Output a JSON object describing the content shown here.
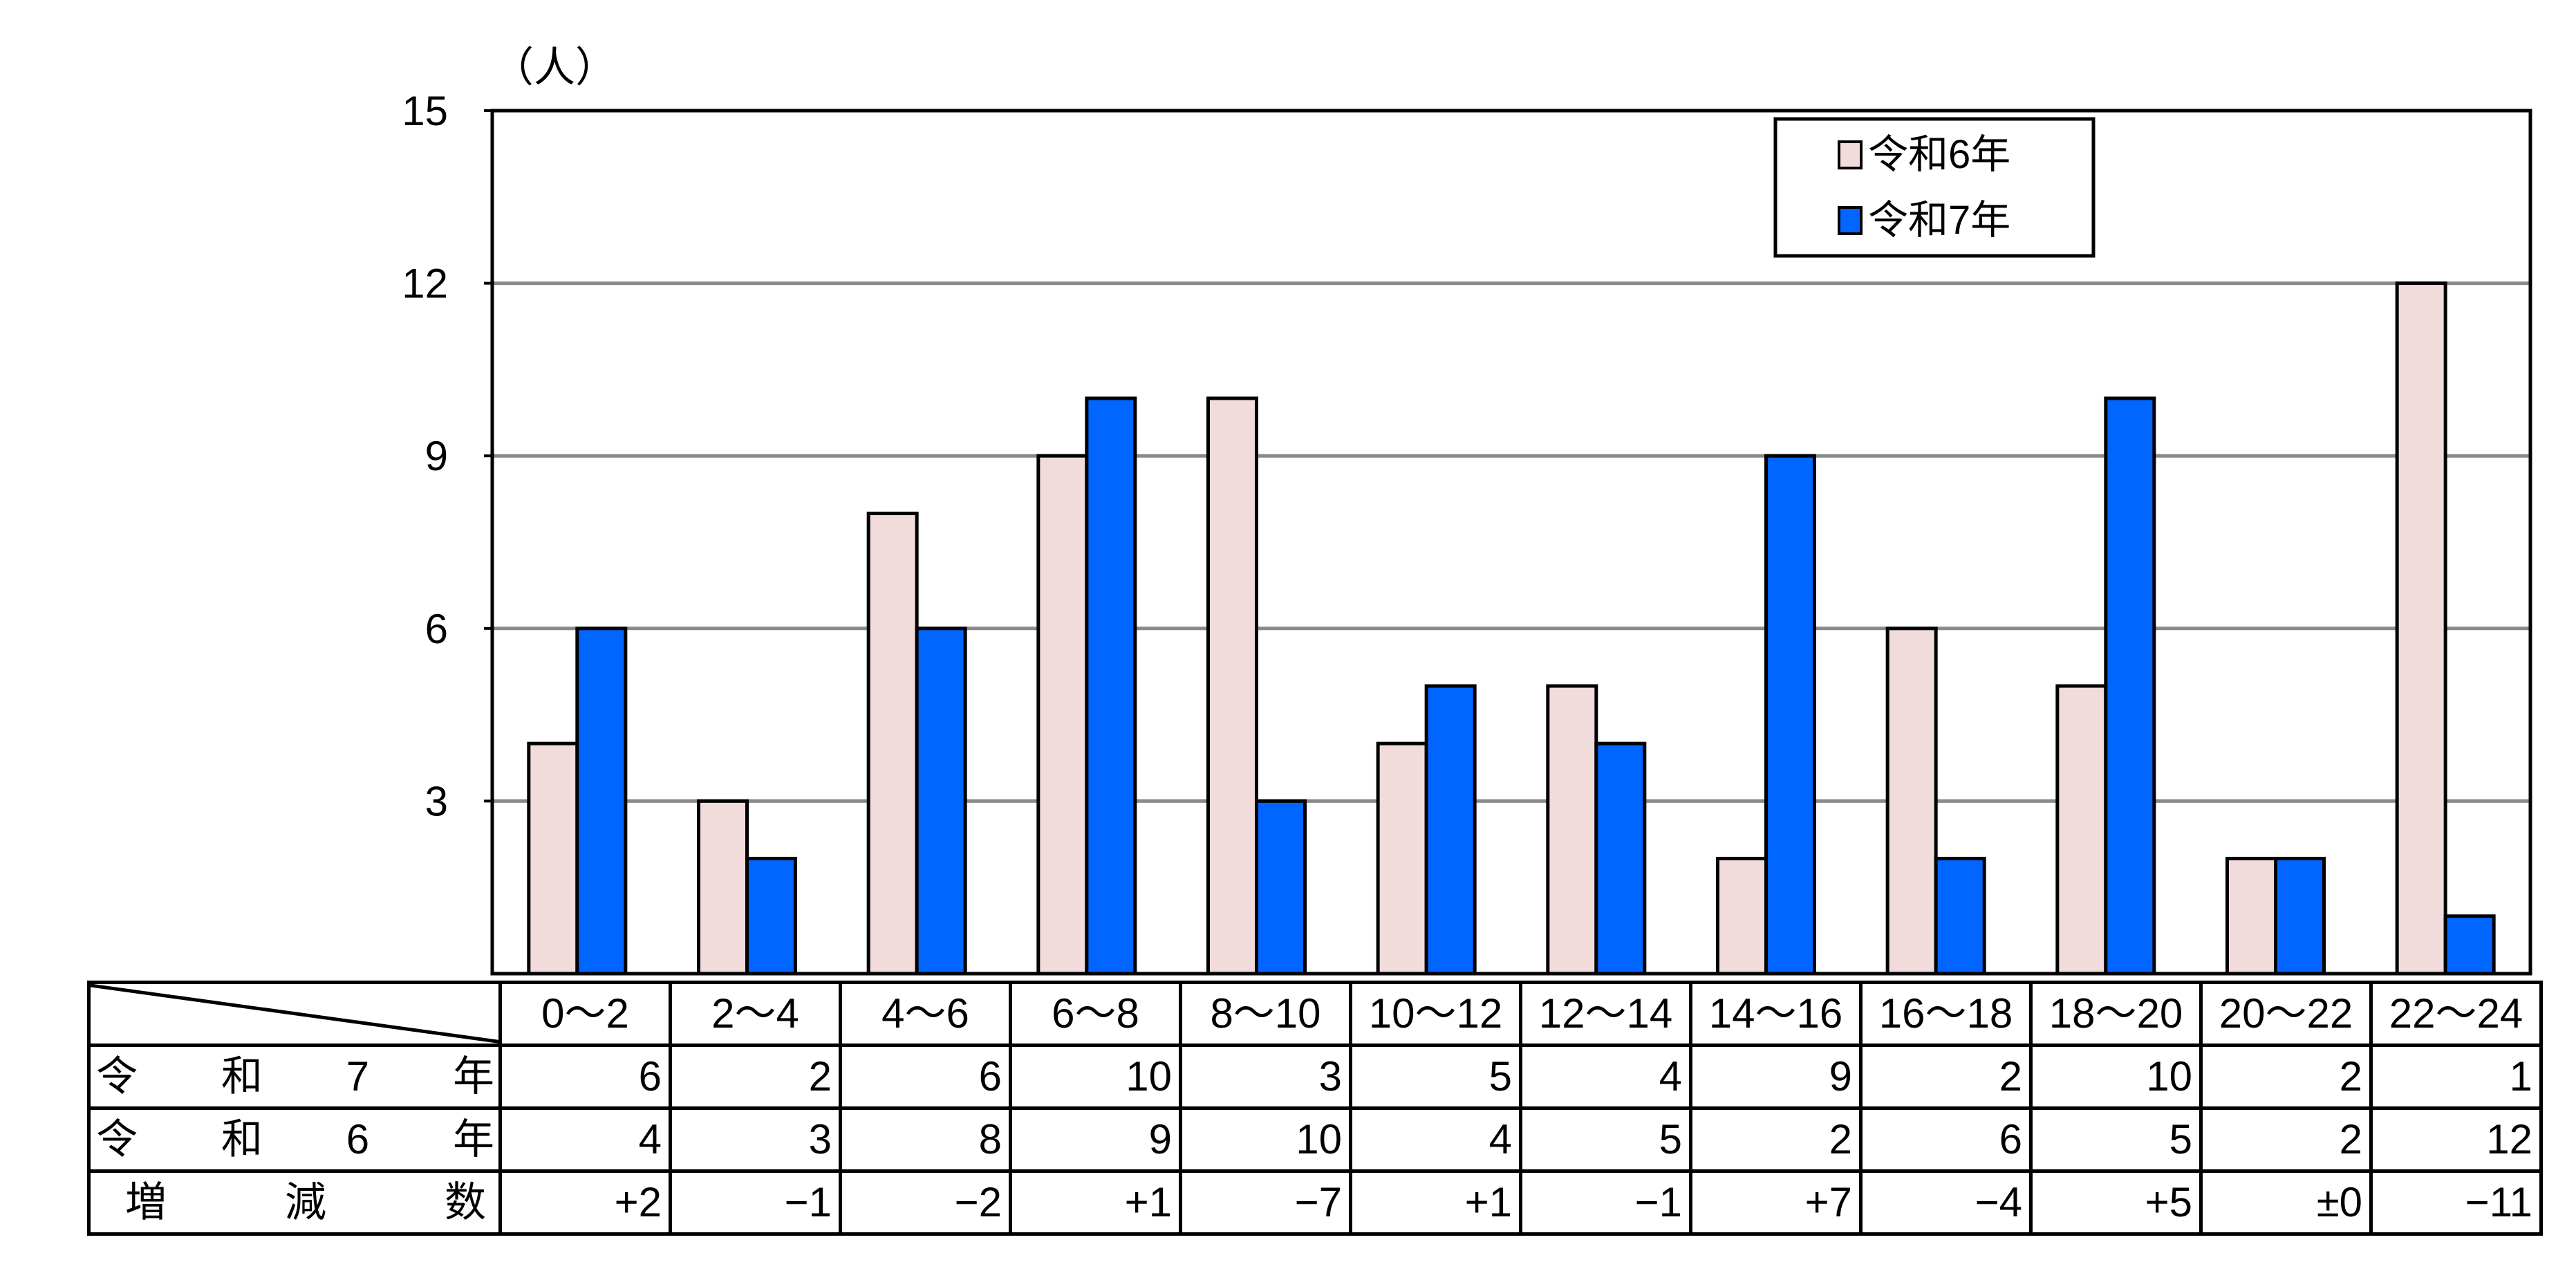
{
  "chart_data": {
    "type": "bar",
    "unit": "（人）",
    "categories": [
      "0～2",
      "2～4",
      "4～6",
      "6～8",
      "8～10",
      "10～12",
      "12～14",
      "14～16",
      "16～18",
      "18～20",
      "20～22",
      "22～24"
    ],
    "series": [
      {
        "name": "令和6年",
        "values": [
          4,
          3,
          8,
          9,
          10,
          4,
          5,
          2,
          6,
          5,
          2,
          12
        ],
        "color": "#f1dcdb"
      },
      {
        "name": "令和7年",
        "values": [
          6,
          2,
          6,
          10,
          3,
          5,
          4,
          9,
          2,
          10,
          2,
          1
        ],
        "color": "#0066ff"
      }
    ],
    "ylim": [
      0,
      15
    ],
    "yticks": [
      3,
      6,
      9,
      12,
      15
    ],
    "grid": true,
    "legend_position": "top-right"
  },
  "table": {
    "rows": [
      {
        "label_chars": [
          "令",
          "和",
          "7",
          "年"
        ],
        "values": [
          "6",
          "2",
          "6",
          "10",
          "3",
          "5",
          "4",
          "9",
          "2",
          "10",
          "2",
          "1"
        ]
      },
      {
        "label_chars": [
          "令",
          "和",
          "6",
          "年"
        ],
        "values": [
          "4",
          "3",
          "8",
          "9",
          "10",
          "4",
          "5",
          "2",
          "6",
          "5",
          "2",
          "12"
        ]
      },
      {
        "label_chars": [
          "増",
          "減",
          "数"
        ],
        "values": [
          "+2",
          "−1",
          "−2",
          "+1",
          "−7",
          "+1",
          "−1",
          "+7",
          "−4",
          "+5",
          "±0",
          "−11"
        ]
      }
    ]
  }
}
